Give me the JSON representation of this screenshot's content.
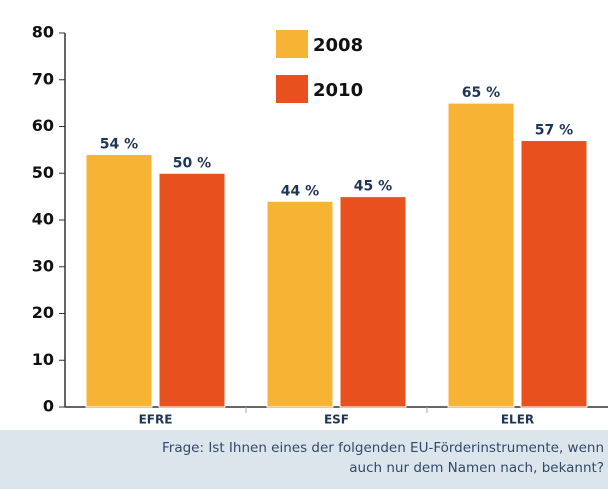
{
  "chart_data": {
    "type": "bar",
    "categories": [
      "EFRE",
      "ESF",
      "ELER"
    ],
    "series": [
      {
        "name": "2008",
        "color": "#f6b334",
        "values": [
          54,
          44,
          65
        ],
        "value_labels": [
          "54 %",
          "44 %",
          "65 %"
        ]
      },
      {
        "name": "2010",
        "color": "#e8511e",
        "values": [
          50,
          45,
          57
        ],
        "value_labels": [
          "50 %",
          "45 %",
          "57 %"
        ]
      }
    ],
    "ylim": [
      0,
      80
    ],
    "yticks": [
      0,
      10,
      20,
      30,
      40,
      50,
      60,
      70,
      80
    ],
    "caption": [
      "Frage: Ist Ihnen eines der folgenden EU-Förderinstrumente, wenn",
      "auch nur dem Namen nach, bekannt?"
    ]
  }
}
